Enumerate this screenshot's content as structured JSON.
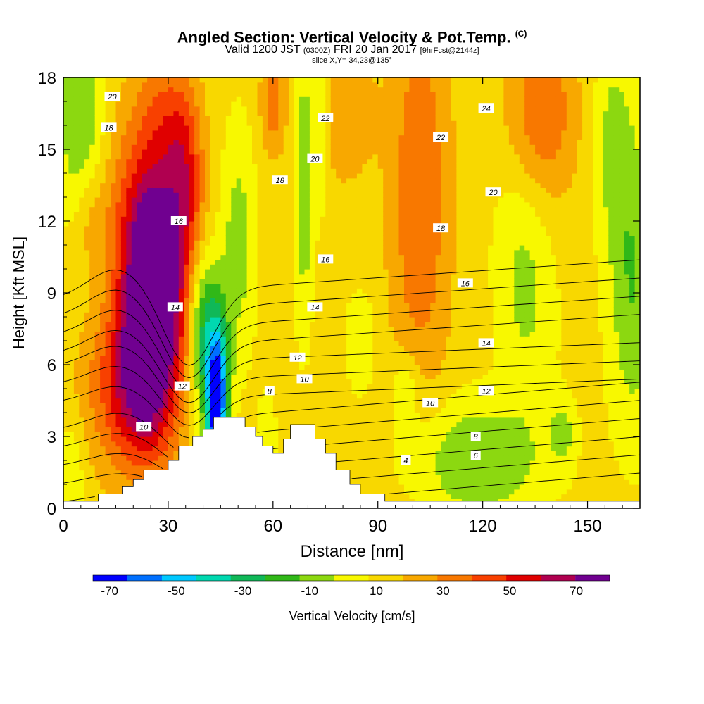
{
  "header": {
    "title": "Angled Section: Vertical Velocity & Pot.Temp.",
    "title_mark": "(C)",
    "valid_prefix": "Valid 1200 JST",
    "valid_z": "(0300Z)",
    "valid_date": "FRI 20 Jan 2017",
    "valid_fcst": "[9hrFcst@2144z]",
    "slice": "slice X,Y= 34,23@135°"
  },
  "chart_data": {
    "type": "heatmap",
    "xlabel": "Distance [nm]",
    "ylabel": "Height [Kft MSL]",
    "xlim": [
      0,
      165
    ],
    "ylim": [
      0,
      18
    ],
    "x_ticks": [
      0,
      30,
      60,
      90,
      120,
      150
    ],
    "y_ticks": [
      0,
      3,
      6,
      9,
      12,
      15,
      18
    ],
    "colorbar": {
      "label": "Vertical Velocity [cm/s]",
      "tick_labels": [
        "-70",
        "-50",
        "-30",
        "-10",
        "10",
        "30",
        "50",
        "70"
      ],
      "tick_values": [
        -70,
        -50,
        -30,
        -10,
        10,
        30,
        50,
        70
      ],
      "range": [
        -75,
        80
      ],
      "colors": [
        "#0000ff",
        "#0070ff",
        "#00c8ff",
        "#00d8b0",
        "#10b858",
        "#30b818",
        "#8cd810",
        "#f8f800",
        "#f8d800",
        "#f8a800",
        "#f87800",
        "#f84000",
        "#e00000",
        "#b00050",
        "#700090"
      ]
    },
    "contour_labels": [
      {
        "text": "20",
        "x": 14,
        "y": 17.2
      },
      {
        "text": "18",
        "x": 13,
        "y": 15.9
      },
      {
        "text": "22",
        "x": 75,
        "y": 16.3
      },
      {
        "text": "24",
        "x": 121,
        "y": 16.7
      },
      {
        "text": "20",
        "x": 72,
        "y": 14.6
      },
      {
        "text": "22",
        "x": 108,
        "y": 15.5
      },
      {
        "text": "18",
        "x": 62,
        "y": 13.7
      },
      {
        "text": "20",
        "x": 123,
        "y": 13.2
      },
      {
        "text": "16",
        "x": 33,
        "y": 12.0
      },
      {
        "text": "18",
        "x": 108,
        "y": 11.7
      },
      {
        "text": "16",
        "x": 75,
        "y": 10.4
      },
      {
        "text": "16",
        "x": 115,
        "y": 9.4
      },
      {
        "text": "14",
        "x": 32,
        "y": 8.4
      },
      {
        "text": "14",
        "x": 72,
        "y": 8.4
      },
      {
        "text": "14",
        "x": 121,
        "y": 6.9
      },
      {
        "text": "12",
        "x": 67,
        "y": 6.3
      },
      {
        "text": "10",
        "x": 69,
        "y": 5.4
      },
      {
        "text": "12",
        "x": 34,
        "y": 5.1
      },
      {
        "text": "12",
        "x": 121,
        "y": 4.9
      },
      {
        "text": "8",
        "x": 59,
        "y": 4.9
      },
      {
        "text": "10",
        "x": 105,
        "y": 4.4
      },
      {
        "text": "10",
        "x": 23,
        "y": 3.4
      },
      {
        "text": "8",
        "x": 118,
        "y": 3.0
      },
      {
        "text": "6",
        "x": 118,
        "y": 2.2
      },
      {
        "text": "4",
        "x": 98,
        "y": 2.0
      }
    ],
    "theta_levels": [
      2,
      4,
      6,
      8,
      10,
      12,
      14,
      16,
      18,
      20,
      22,
      24,
      26
    ],
    "terrain": [
      [
        0,
        0.3
      ],
      [
        10,
        0.3
      ],
      [
        10,
        0.6
      ],
      [
        17,
        0.6
      ],
      [
        17,
        0.9
      ],
      [
        20,
        0.9
      ],
      [
        20,
        1.2
      ],
      [
        23,
        1.2
      ],
      [
        23,
        1.6
      ],
      [
        30,
        1.6
      ],
      [
        30,
        2.0
      ],
      [
        33,
        2.0
      ],
      [
        33,
        2.6
      ],
      [
        37,
        2.6
      ],
      [
        37,
        3.0
      ],
      [
        40,
        3.0
      ],
      [
        40,
        3.3
      ],
      [
        43,
        3.3
      ],
      [
        43,
        3.8
      ],
      [
        52,
        3.8
      ],
      [
        52,
        3.4
      ],
      [
        55,
        3.4
      ],
      [
        55,
        3.0
      ],
      [
        57,
        3.0
      ],
      [
        57,
        2.6
      ],
      [
        60,
        2.6
      ],
      [
        60,
        2.3
      ],
      [
        63,
        2.3
      ],
      [
        63,
        2.9
      ],
      [
        65,
        2.9
      ],
      [
        65,
        3.5
      ],
      [
        72,
        3.5
      ],
      [
        72,
        2.9
      ],
      [
        75,
        2.9
      ],
      [
        75,
        2.3
      ],
      [
        78,
        2.3
      ],
      [
        78,
        1.6
      ],
      [
        82,
        1.6
      ],
      [
        82,
        1.0
      ],
      [
        85,
        1.0
      ],
      [
        85,
        0.6
      ],
      [
        92,
        0.6
      ],
      [
        92,
        0.3
      ],
      [
        165,
        0.3
      ]
    ]
  }
}
